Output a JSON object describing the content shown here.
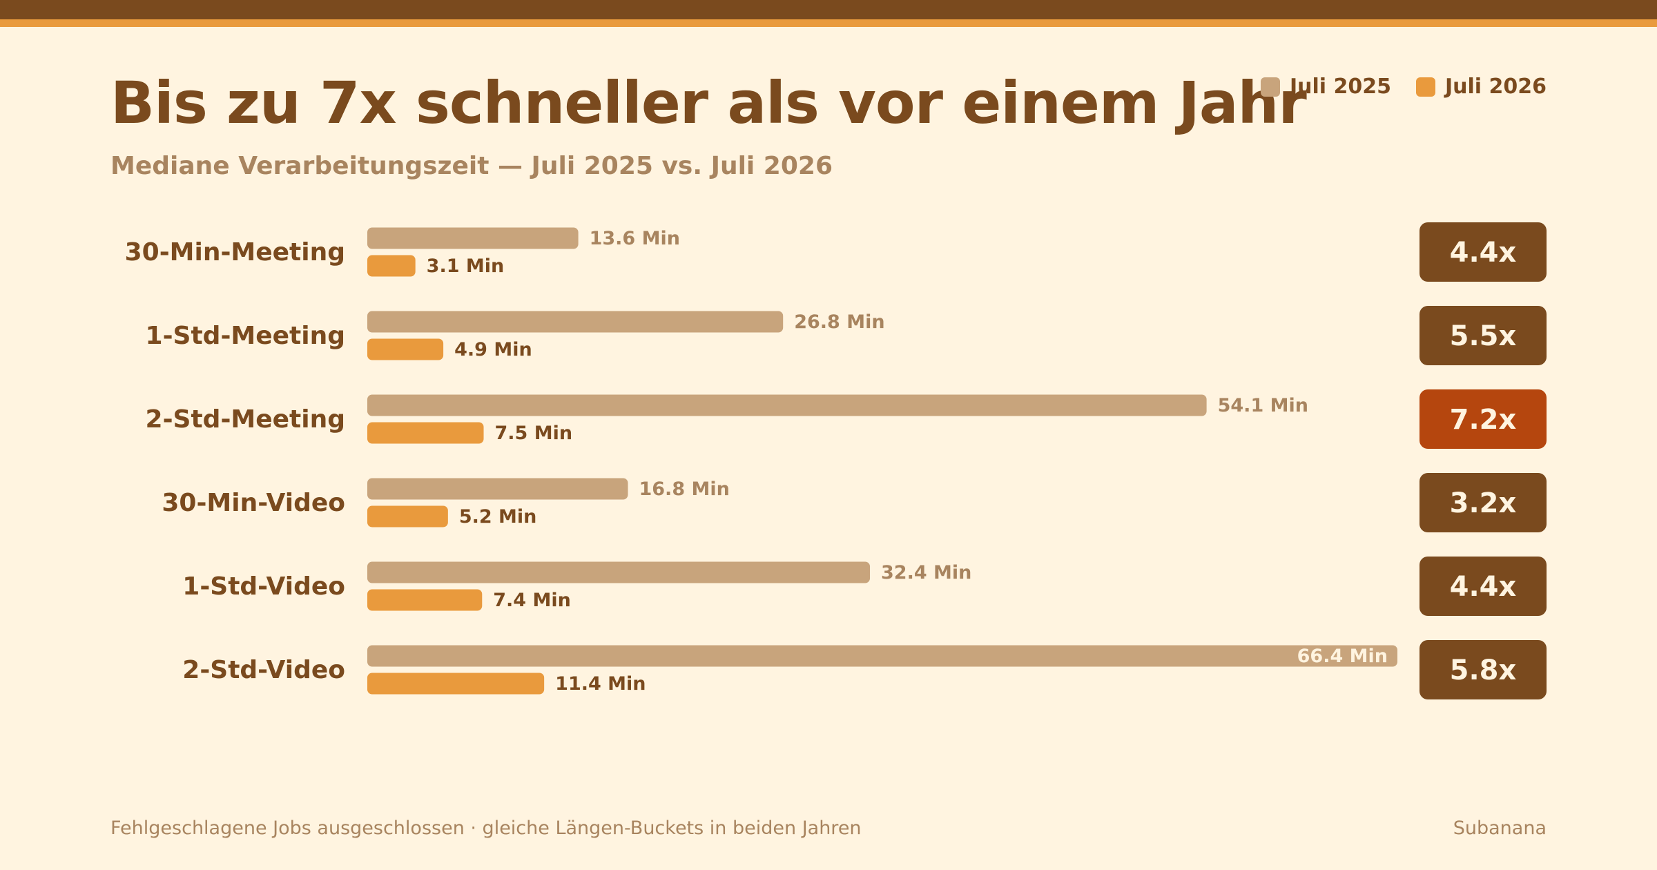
{
  "header": {
    "title": "Bis zu 7x schneller als vor einem Jahr",
    "subtitle": "Mediane Verarbeitungszeit — Juli 2025 vs. Juli 2026"
  },
  "legend": {
    "items": [
      {
        "label": "Juli 2025",
        "color": "#C8A47C"
      },
      {
        "label": "Juli 2026",
        "color": "#E99A3D"
      }
    ]
  },
  "colors": {
    "background": "#FFF4E0",
    "dark_brown": "#7A4A1E",
    "highlight": "#B5460E",
    "muted_text": "#A8845F",
    "value_text_2026": "#7A4A1E"
  },
  "chart_data": {
    "type": "bar",
    "orientation": "horizontal",
    "categories": [
      "30-Min-Meeting",
      "1-Std-Meeting",
      "2-Std-Meeting",
      "30-Min-Video",
      "1-Std-Video",
      "2-Std-Video"
    ],
    "series": [
      {
        "name": "Juli 2025",
        "values": [
          13.6,
          26.8,
          54.1,
          16.8,
          32.4,
          66.4
        ],
        "value_labels": [
          "13.6 Min",
          "26.8 Min",
          "54.1 Min",
          "16.8 Min",
          "32.4 Min",
          "66.4 Min"
        ]
      },
      {
        "name": "Juli 2026",
        "values": [
          3.1,
          4.9,
          7.5,
          5.2,
          7.4,
          11.4
        ],
        "value_labels": [
          "3.1 Min",
          "4.9 Min",
          "7.5 Min",
          "5.2 Min",
          "7.4 Min",
          "11.4 Min"
        ]
      }
    ],
    "speedup_labels": [
      "4.4x",
      "5.5x",
      "7.2x",
      "3.2x",
      "4.4x",
      "5.8x"
    ],
    "highlighted_category": "2-Std-Meeting",
    "xlim": [
      0,
      66.4
    ],
    "grid": false,
    "legend_position": "top-right"
  },
  "footer": {
    "note": "Fehlgeschlagene Jobs ausgeschlossen · gleiche Längen-Buckets in beiden Jahren",
    "brand": "Subanana"
  }
}
